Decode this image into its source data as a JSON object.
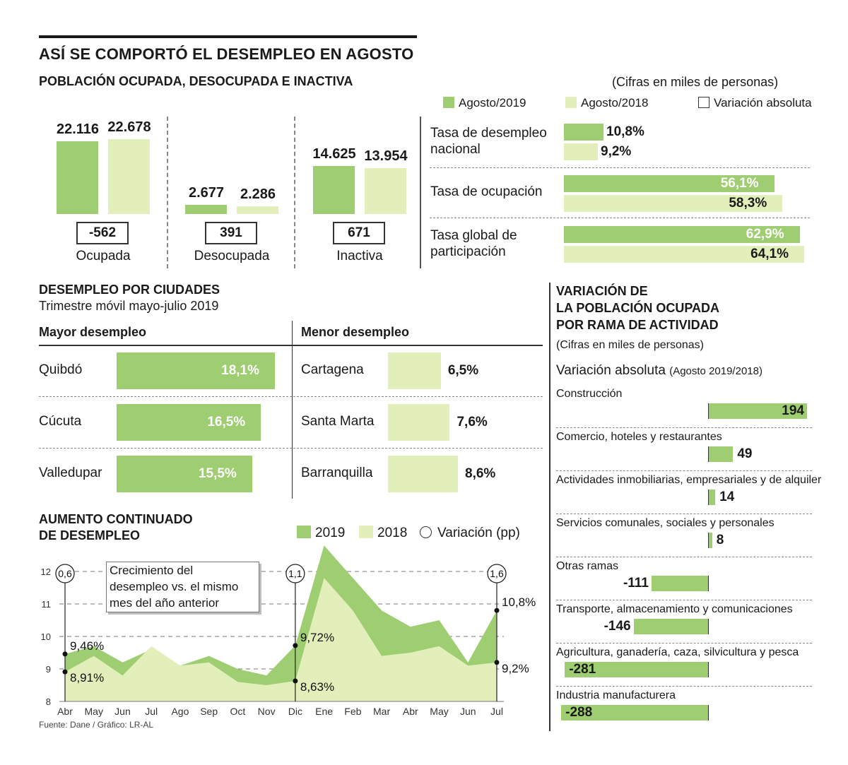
{
  "header": {
    "title": "ASÍ SE COMPORTÓ EL DESEMPLEO EN AGOSTO",
    "subtitle": "POBLACIÓN OCUPADA, DESOCUPADA E INACTIVA",
    "units": "(Cifras en miles de personas)"
  },
  "legend_top": {
    "a2019": "Agosto/2019",
    "a2018": "Agosto/2018",
    "variation": "Variación absoluta"
  },
  "colors": {
    "c2019": "#9fcd72",
    "c2018": "#e3efba"
  },
  "population": [
    {
      "name": "Ocupada",
      "v2019_label": "22.116",
      "v2018_label": "22.678",
      "v2019": 22116,
      "v2018": 22678,
      "variation": "-562"
    },
    {
      "name": "Desocupada",
      "v2019_label": "2.677",
      "v2018_label": "2.286",
      "v2019": 2677,
      "v2018": 2286,
      "variation": "391"
    },
    {
      "name": "Inactiva",
      "v2019_label": "14.625",
      "v2018_label": "13.954",
      "v2019": 14625,
      "v2018": 13954,
      "variation": "671"
    }
  ],
  "rates": [
    {
      "name_lines": [
        "Tasa de desempleo",
        "nacional"
      ],
      "v2019": 10.8,
      "v2018": 9.2,
      "l2019": "10,8%",
      "l2018": "9,2%"
    },
    {
      "name_lines": [
        "Tasa de ocupación"
      ],
      "v2019": 56.1,
      "v2018": 58.3,
      "l2019": "56,1%",
      "l2018": "58,3%"
    },
    {
      "name_lines": [
        "Tasa global de",
        "participación"
      ],
      "v2019": 62.9,
      "v2018": 64.1,
      "l2019": "62,9%",
      "l2018": "64,1%"
    }
  ],
  "cities": {
    "title": "DESEMPLEO POR CIUDADES",
    "subtitle": "Trimestre móvil mayo-julio 2019",
    "higher_title": "Mayor desempleo",
    "lower_title": "Menor desempleo",
    "higher": [
      {
        "city": "Quibdó",
        "value": 18.1,
        "label": "18,1%"
      },
      {
        "city": "Cúcuta",
        "value": 16.5,
        "label": "16,5%"
      },
      {
        "city": "Valledupar",
        "value": 15.5,
        "label": "15,5%"
      }
    ],
    "lower": [
      {
        "city": "Cartagena",
        "value": 6.5,
        "label": "6,5%"
      },
      {
        "city": "Santa Marta",
        "value": 7.6,
        "label": "7,6%"
      },
      {
        "city": "Barranquilla",
        "value": 8.6,
        "label": "8,6%"
      }
    ]
  },
  "sectors": {
    "title_lines": [
      "VARIACIÓN DE",
      "LA POBLACIÓN OCUPADA",
      "POR RAMA DE ACTIVIDAD"
    ],
    "units": "(Cifras en miles de personas)",
    "variation_label": "Variación absoluta",
    "variation_period": "(Agosto 2019/2018)",
    "items": [
      {
        "name": "Construcción",
        "value": 194,
        "label": "194"
      },
      {
        "name": "Comercio, hoteles y restaurantes",
        "value": 49,
        "label": "49"
      },
      {
        "name": "Actividades inmobiliarias, empresariales y de alquiler",
        "value": 14,
        "label": "14"
      },
      {
        "name": "Servicios comunales, sociales y personales",
        "value": 8,
        "label": "8"
      },
      {
        "name": "Otras ramas",
        "value": -111,
        "label": "-111"
      },
      {
        "name": "Transporte, almacenamiento y comunicaciones",
        "value": -146,
        "label": "-146"
      },
      {
        "name": "Agricultura, ganadería, caza, silvicultura y pesca",
        "value": -281,
        "label": "-281"
      },
      {
        "name": "Industria manufacturera",
        "value": -288,
        "label": "-288"
      }
    ]
  },
  "trend": {
    "title_lines": [
      "AUMENTO CONTINUADO",
      "DE DESEMPLEO"
    ],
    "legend": {
      "s2019": "2019",
      "s2018": "2018",
      "variation": "Variación (pp)"
    },
    "note_lines": [
      "Crecimiento del",
      "desempleo vs. el mismo",
      "mes del año anterior"
    ],
    "source": "Fuente: Dane / Gráfico: LR-AL",
    "markers": [
      {
        "month_index": 0,
        "label": "0,6"
      },
      {
        "month_index": 8,
        "label": "1,1"
      },
      {
        "month_index": 15,
        "label": "1,6"
      }
    ],
    "point_labels": [
      {
        "month_index": 0,
        "series": "upper",
        "label": "9,46%"
      },
      {
        "month_index": 0,
        "series": "lower",
        "label": "8,91%"
      },
      {
        "month_index": 8,
        "series": "upper",
        "label": "9,72%"
      },
      {
        "month_index": 8,
        "series": "lower",
        "label": "8,63%"
      },
      {
        "month_index": 15,
        "series": "upper",
        "label": "10,8%"
      },
      {
        "month_index": 15,
        "series": "lower",
        "label": "9,2%"
      }
    ]
  },
  "chart_data": {
    "type": "area",
    "title": "AUMENTO CONTINUADO DE DESEMPLEO",
    "categories": [
      "Abr",
      "May",
      "Jun",
      "Jul",
      "Ago",
      "Sep",
      "Oct",
      "Nov",
      "Dic",
      "Ene",
      "Feb",
      "Mar",
      "Abr",
      "May",
      "Jun",
      "Jul"
    ],
    "yticks": [
      "8",
      "9",
      "10",
      "11",
      "12"
    ],
    "ylim": [
      8,
      12.3
    ],
    "series": [
      {
        "name": "2019",
        "values": [
          9.46,
          9.7,
          9.2,
          9.6,
          9.1,
          9.4,
          9.0,
          8.8,
          9.72,
          12.8,
          11.8,
          10.8,
          10.3,
          10.5,
          9.2,
          10.8
        ]
      },
      {
        "name": "2018",
        "values": [
          8.91,
          9.4,
          8.8,
          9.7,
          9.1,
          9.2,
          8.6,
          8.5,
          8.63,
          11.8,
          10.8,
          9.4,
          9.5,
          9.7,
          9.1,
          9.2
        ]
      }
    ],
    "grid": true
  }
}
